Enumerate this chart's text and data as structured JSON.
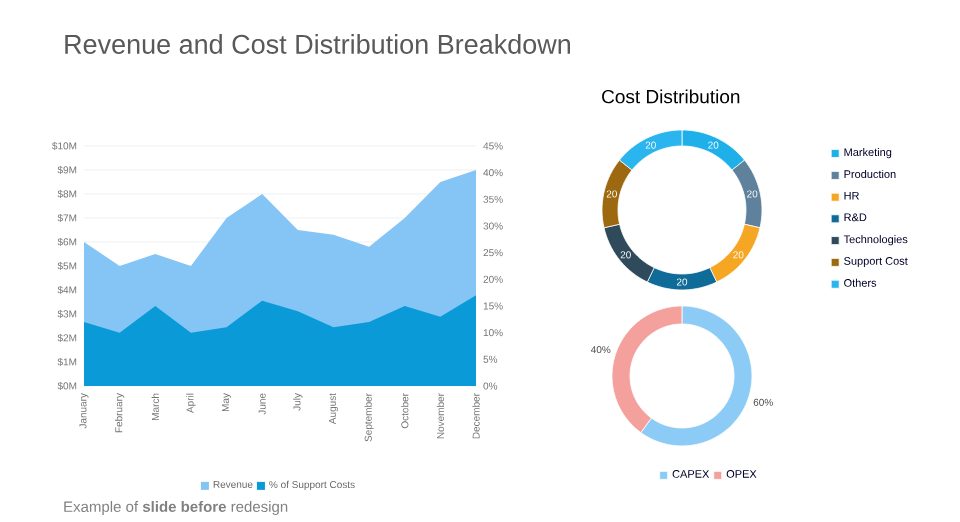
{
  "chart_data": [
    {
      "type": "area",
      "title": "Revenue and Cost Distribution Breakdown",
      "categories": [
        "January",
        "February",
        "March",
        "April",
        "May",
        "June",
        "July",
        "August",
        "September",
        "October",
        "November",
        "December"
      ],
      "series": [
        {
          "name": "Revenue",
          "color": "#84c5f5",
          "values": [
            6,
            5,
            5.5,
            5,
            7,
            8,
            6.5,
            6.3,
            5.8,
            7,
            8.5,
            9
          ]
        },
        {
          "name": "% of Support Costs",
          "color": "#0a9ad8",
          "axis": "y2",
          "values": [
            12,
            10,
            15,
            10,
            11,
            16,
            14,
            11,
            12,
            15,
            13,
            17
          ]
        }
      ],
      "ylim": [
        0,
        10
      ],
      "yticks": [
        {
          "value": 0,
          "label": "$0M"
        },
        {
          "value": 1,
          "label": "$1M"
        },
        {
          "value": 2,
          "label": "$2M"
        },
        {
          "value": 3,
          "label": "$3M"
        },
        {
          "value": 4,
          "label": "$4M"
        },
        {
          "value": 5,
          "label": "$5M"
        },
        {
          "value": 6,
          "label": "$6M"
        },
        {
          "value": 7,
          "label": "$7M"
        },
        {
          "value": 8,
          "label": "$8M"
        },
        {
          "value": 9,
          "label": "$9M"
        },
        {
          "value": 10,
          "label": "$10M"
        }
      ],
      "y2lim": [
        0,
        45
      ],
      "y2ticks": [
        {
          "value": 0,
          "label": "0%"
        },
        {
          "value": 5,
          "label": "5%"
        },
        {
          "value": 10,
          "label": "10%"
        },
        {
          "value": 15,
          "label": "15%"
        },
        {
          "value": 20,
          "label": "20%"
        },
        {
          "value": 25,
          "label": "25%"
        },
        {
          "value": 30,
          "label": "30%"
        },
        {
          "value": 35,
          "label": "35%"
        },
        {
          "value": 40,
          "label": "40%"
        },
        {
          "value": 45,
          "label": "45%"
        }
      ],
      "grid": "y",
      "legend": "bottom",
      "annotations": [
        "Example of **slide before** redesign"
      ]
    },
    {
      "type": "donut",
      "title": "Cost Distribution",
      "categories": [
        "Marketing",
        "Production",
        "HR",
        "R&D",
        "Technologies",
        "Support Cost",
        "Others"
      ],
      "values": [
        20,
        20,
        20,
        20,
        20,
        20,
        20
      ],
      "colors": [
        "#1fb0ea",
        "#5f819b",
        "#f5a623",
        "#0f6b97",
        "#2f4a5b",
        "#9c6910",
        "#2ab5ee"
      ],
      "data_labels": true,
      "legend": "right"
    },
    {
      "type": "donut",
      "categories": [
        "CAPEX",
        "OPEX"
      ],
      "values": [
        60,
        40
      ],
      "colors": [
        "#8ccbf5",
        "#f4a09c"
      ],
      "value_labels": [
        "60%",
        "40%"
      ],
      "legend": "bottom"
    }
  ]
}
